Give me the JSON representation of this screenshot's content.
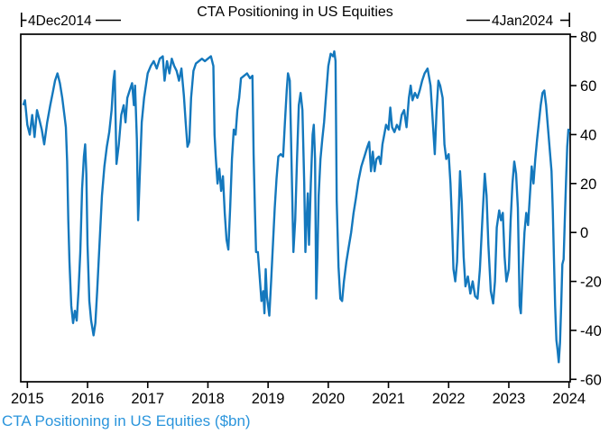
{
  "figure": {
    "title": "CTA Positioning in US Equities",
    "footer": "CTA Positioning in US Equities ($bn)",
    "range_start_label": "4Dec2014",
    "range_end_label": "4Jan2024"
  },
  "colors": {
    "line": "#1478bd",
    "footer_text": "#2b95dc",
    "axis": "#000000"
  },
  "chart_data": {
    "type": "line",
    "title": "CTA Positioning in US Equities",
    "ylabel": "CTA Positioning in US Equities ($bn)",
    "xlabel": "",
    "legend": [],
    "grid": false,
    "y_axis_side": "right",
    "date_range": [
      "4Dec2014",
      "4Jan2024"
    ],
    "x_ticks": [
      2015,
      2016,
      2017,
      2018,
      2019,
      2020,
      2021,
      2022,
      2023,
      2024
    ],
    "y_ticks": [
      80,
      60,
      40,
      20,
      0,
      -20,
      -40,
      -60
    ],
    "x_range": [
      2014.89,
      2024.02
    ],
    "y_range": [
      -61,
      81
    ],
    "series": [
      {
        "name": "CTA Positioning in US Equities ($bn)",
        "points": [
          [
            2014.93,
            52
          ],
          [
            2014.96,
            54
          ],
          [
            2015.0,
            44
          ],
          [
            2015.04,
            40
          ],
          [
            2015.08,
            48
          ],
          [
            2015.12,
            39
          ],
          [
            2015.16,
            50
          ],
          [
            2015.2,
            46
          ],
          [
            2015.24,
            42
          ],
          [
            2015.28,
            36
          ],
          [
            2015.33,
            45
          ],
          [
            2015.38,
            52
          ],
          [
            2015.42,
            57
          ],
          [
            2015.46,
            62
          ],
          [
            2015.5,
            65
          ],
          [
            2015.54,
            61
          ],
          [
            2015.58,
            55
          ],
          [
            2015.62,
            47
          ],
          [
            2015.64,
            43
          ],
          [
            2015.66,
            29
          ],
          [
            2015.68,
            5
          ],
          [
            2015.7,
            -12
          ],
          [
            2015.73,
            -30
          ],
          [
            2015.76,
            -37
          ],
          [
            2015.79,
            -32
          ],
          [
            2015.82,
            -36
          ],
          [
            2015.85,
            -24
          ],
          [
            2015.88,
            -8
          ],
          [
            2015.91,
            18
          ],
          [
            2015.94,
            31
          ],
          [
            2015.96,
            36
          ],
          [
            2015.98,
            24
          ],
          [
            2016.0,
            -5
          ],
          [
            2016.03,
            -28
          ],
          [
            2016.06,
            -36
          ],
          [
            2016.1,
            -42
          ],
          [
            2016.13,
            -37
          ],
          [
            2016.16,
            -24
          ],
          [
            2016.2,
            -4
          ],
          [
            2016.24,
            15
          ],
          [
            2016.28,
            27
          ],
          [
            2016.32,
            35
          ],
          [
            2016.36,
            41
          ],
          [
            2016.4,
            50
          ],
          [
            2016.43,
            62
          ],
          [
            2016.45,
            66
          ],
          [
            2016.48,
            28
          ],
          [
            2016.52,
            36
          ],
          [
            2016.56,
            48
          ],
          [
            2016.6,
            52
          ],
          [
            2016.63,
            45
          ],
          [
            2016.66,
            55
          ],
          [
            2016.7,
            58
          ],
          [
            2016.74,
            61
          ],
          [
            2016.77,
            52
          ],
          [
            2016.79,
            60
          ],
          [
            2016.82,
            38
          ],
          [
            2016.84,
            5
          ],
          [
            2016.87,
            25
          ],
          [
            2016.9,
            45
          ],
          [
            2016.94,
            55
          ],
          [
            2017.0,
            65
          ],
          [
            2017.05,
            68
          ],
          [
            2017.1,
            70
          ],
          [
            2017.15,
            67
          ],
          [
            2017.2,
            71
          ],
          [
            2017.25,
            72
          ],
          [
            2017.28,
            62
          ],
          [
            2017.32,
            70
          ],
          [
            2017.36,
            65
          ],
          [
            2017.4,
            71
          ],
          [
            2017.44,
            68
          ],
          [
            2017.48,
            66
          ],
          [
            2017.52,
            62
          ],
          [
            2017.56,
            67
          ],
          [
            2017.6,
            56
          ],
          [
            2017.63,
            45
          ],
          [
            2017.66,
            35
          ],
          [
            2017.69,
            37
          ],
          [
            2017.72,
            55
          ],
          [
            2017.76,
            66
          ],
          [
            2017.8,
            69
          ],
          [
            2017.85,
            70
          ],
          [
            2017.9,
            71
          ],
          [
            2017.95,
            70
          ],
          [
            2018.0,
            71
          ],
          [
            2018.05,
            72
          ],
          [
            2018.09,
            68
          ],
          [
            2018.11,
            40
          ],
          [
            2018.13,
            31
          ],
          [
            2018.16,
            20
          ],
          [
            2018.19,
            26
          ],
          [
            2018.22,
            17
          ],
          [
            2018.25,
            23
          ],
          [
            2018.28,
            8
          ],
          [
            2018.31,
            -3
          ],
          [
            2018.34,
            -7
          ],
          [
            2018.37,
            10
          ],
          [
            2018.4,
            30
          ],
          [
            2018.43,
            42
          ],
          [
            2018.46,
            40
          ],
          [
            2018.49,
            50
          ],
          [
            2018.52,
            55
          ],
          [
            2018.55,
            63
          ],
          [
            2018.6,
            64
          ],
          [
            2018.65,
            65
          ],
          [
            2018.7,
            63
          ],
          [
            2018.74,
            64
          ],
          [
            2018.76,
            32
          ],
          [
            2018.78,
            10
          ],
          [
            2018.8,
            -8
          ],
          [
            2018.83,
            -8
          ],
          [
            2018.86,
            -18
          ],
          [
            2018.89,
            -28
          ],
          [
            2018.92,
            -24
          ],
          [
            2018.94,
            -33
          ],
          [
            2018.96,
            -15
          ],
          [
            2018.98,
            -26
          ],
          [
            2019.0,
            -30
          ],
          [
            2019.02,
            -34
          ],
          [
            2019.05,
            -20
          ],
          [
            2019.08,
            -5
          ],
          [
            2019.11,
            10
          ],
          [
            2019.14,
            22
          ],
          [
            2019.17,
            31
          ],
          [
            2019.21,
            32
          ],
          [
            2019.25,
            31
          ],
          [
            2019.28,
            45
          ],
          [
            2019.31,
            58
          ],
          [
            2019.33,
            65
          ],
          [
            2019.36,
            62
          ],
          [
            2019.38,
            40
          ],
          [
            2019.4,
            17
          ],
          [
            2019.42,
            -8
          ],
          [
            2019.45,
            5
          ],
          [
            2019.48,
            30
          ],
          [
            2019.51,
            52
          ],
          [
            2019.54,
            57
          ],
          [
            2019.57,
            50
          ],
          [
            2019.6,
            20
          ],
          [
            2019.62,
            -8
          ],
          [
            2019.64,
            5
          ],
          [
            2019.66,
            16
          ],
          [
            2019.68,
            -5
          ],
          [
            2019.71,
            20
          ],
          [
            2019.74,
            40
          ],
          [
            2019.76,
            44
          ],
          [
            2019.78,
            30
          ],
          [
            2019.8,
            -27
          ],
          [
            2019.82,
            -10
          ],
          [
            2019.84,
            15
          ],
          [
            2019.87,
            30
          ],
          [
            2019.9,
            38
          ],
          [
            2019.93,
            45
          ],
          [
            2019.96,
            55
          ],
          [
            2020.0,
            68
          ],
          [
            2020.04,
            73
          ],
          [
            2020.08,
            72
          ],
          [
            2020.1,
            74
          ],
          [
            2020.12,
            70
          ],
          [
            2020.14,
            13
          ],
          [
            2020.17,
            -14
          ],
          [
            2020.2,
            -27
          ],
          [
            2020.23,
            -28
          ],
          [
            2020.26,
            -20
          ],
          [
            2020.3,
            -12
          ],
          [
            2020.34,
            -6
          ],
          [
            2020.38,
            0
          ],
          [
            2020.42,
            8
          ],
          [
            2020.46,
            14
          ],
          [
            2020.5,
            21
          ],
          [
            2020.55,
            27
          ],
          [
            2020.6,
            31
          ],
          [
            2020.65,
            35
          ],
          [
            2020.68,
            37
          ],
          [
            2020.71,
            25
          ],
          [
            2020.74,
            33
          ],
          [
            2020.77,
            25
          ],
          [
            2020.8,
            30
          ],
          [
            2020.84,
            31
          ],
          [
            2020.87,
            28
          ],
          [
            2020.9,
            36
          ],
          [
            2020.93,
            40
          ],
          [
            2020.96,
            44
          ],
          [
            2021.0,
            42
          ],
          [
            2021.03,
            51
          ],
          [
            2021.06,
            43
          ],
          [
            2021.1,
            41
          ],
          [
            2021.14,
            44
          ],
          [
            2021.18,
            42
          ],
          [
            2021.22,
            48
          ],
          [
            2021.26,
            50
          ],
          [
            2021.3,
            43
          ],
          [
            2021.34,
            55
          ],
          [
            2021.37,
            60
          ],
          [
            2021.4,
            54
          ],
          [
            2021.44,
            57
          ],
          [
            2021.48,
            55
          ],
          [
            2021.52,
            58
          ],
          [
            2021.56,
            62
          ],
          [
            2021.6,
            65
          ],
          [
            2021.65,
            67
          ],
          [
            2021.7,
            60
          ],
          [
            2021.74,
            44
          ],
          [
            2021.77,
            32
          ],
          [
            2021.8,
            50
          ],
          [
            2021.83,
            62
          ],
          [
            2021.86,
            60
          ],
          [
            2021.9,
            55
          ],
          [
            2021.93,
            36
          ],
          [
            2021.96,
            30
          ],
          [
            2022.0,
            32
          ],
          [
            2022.03,
            20
          ],
          [
            2022.05,
            8
          ],
          [
            2022.08,
            -15
          ],
          [
            2022.11,
            -20
          ],
          [
            2022.14,
            -12
          ],
          [
            2022.17,
            10
          ],
          [
            2022.19,
            25
          ],
          [
            2022.22,
            12
          ],
          [
            2022.25,
            -10
          ],
          [
            2022.28,
            -22
          ],
          [
            2022.32,
            -18
          ],
          [
            2022.36,
            -25
          ],
          [
            2022.4,
            -20
          ],
          [
            2022.44,
            -26
          ],
          [
            2022.48,
            -27
          ],
          [
            2022.52,
            -15
          ],
          [
            2022.56,
            5
          ],
          [
            2022.6,
            24
          ],
          [
            2022.63,
            15
          ],
          [
            2022.66,
            -5
          ],
          [
            2022.7,
            -24
          ],
          [
            2022.74,
            -29
          ],
          [
            2022.77,
            -20
          ],
          [
            2022.8,
            2
          ],
          [
            2022.84,
            9
          ],
          [
            2022.87,
            5
          ],
          [
            2022.9,
            8
          ],
          [
            2022.93,
            -10
          ],
          [
            2022.96,
            -20
          ],
          [
            2023.0,
            -15
          ],
          [
            2023.03,
            5
          ],
          [
            2023.06,
            20
          ],
          [
            2023.09,
            29
          ],
          [
            2023.12,
            24
          ],
          [
            2023.15,
            10
          ],
          [
            2023.18,
            -30
          ],
          [
            2023.2,
            -33
          ],
          [
            2023.23,
            -15
          ],
          [
            2023.26,
            0
          ],
          [
            2023.29,
            8
          ],
          [
            2023.32,
            3
          ],
          [
            2023.35,
            15
          ],
          [
            2023.38,
            27
          ],
          [
            2023.41,
            20
          ],
          [
            2023.44,
            30
          ],
          [
            2023.47,
            38
          ],
          [
            2023.5,
            45
          ],
          [
            2023.53,
            52
          ],
          [
            2023.56,
            57
          ],
          [
            2023.59,
            58
          ],
          [
            2023.62,
            52
          ],
          [
            2023.65,
            43
          ],
          [
            2023.68,
            34
          ],
          [
            2023.71,
            25
          ],
          [
            2023.73,
            9
          ],
          [
            2023.75,
            -11
          ],
          [
            2023.77,
            -30
          ],
          [
            2023.79,
            -44
          ],
          [
            2023.81,
            -48
          ],
          [
            2023.83,
            -53
          ],
          [
            2023.85,
            -45
          ],
          [
            2023.87,
            -30
          ],
          [
            2023.89,
            -13
          ],
          [
            2023.91,
            -11
          ],
          [
            2023.93,
            5
          ],
          [
            2023.95,
            20
          ],
          [
            2023.97,
            35
          ],
          [
            2023.99,
            42
          ],
          [
            2024.01,
            41
          ]
        ]
      }
    ]
  }
}
